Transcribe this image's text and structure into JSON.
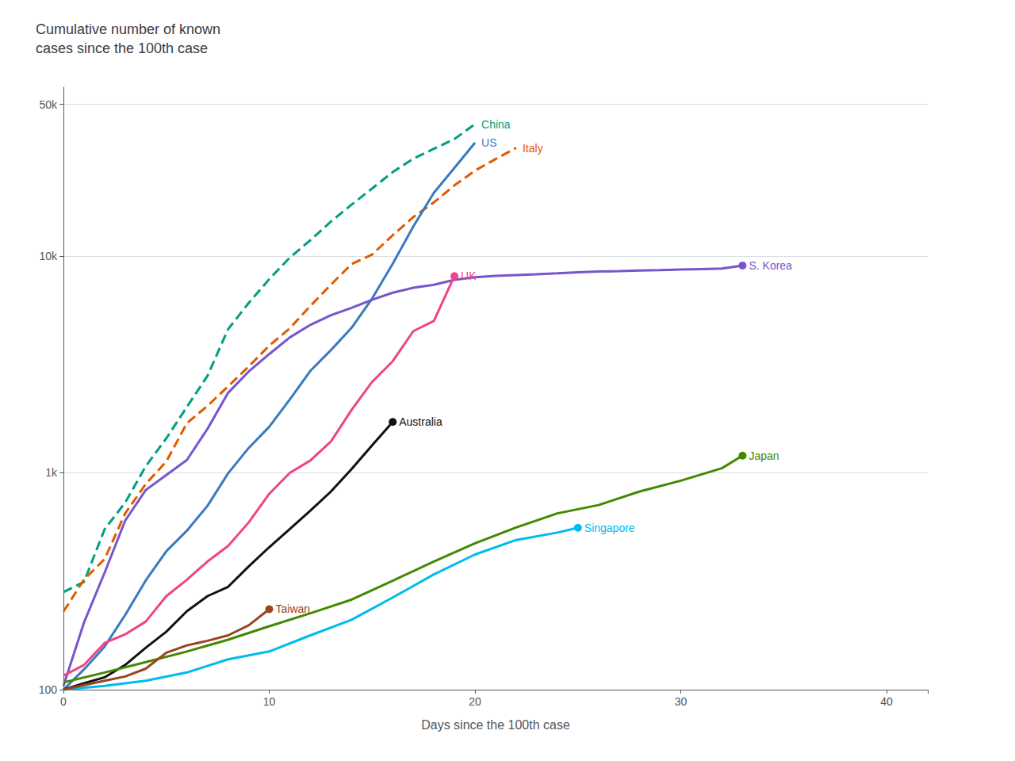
{
  "chart_data": {
    "type": "line",
    "title": "Cumulative number of known\ncases since the 100th case",
    "xlabel": "Days since the 100th case",
    "log": "y",
    "grid": true,
    "xlim": [
      0,
      42
    ],
    "xticks": [
      0,
      10,
      20,
      30,
      40
    ],
    "ylim": [
      100,
      60000
    ],
    "yticks": [
      100,
      {
        "value": 1000,
        "label": "1k"
      },
      {
        "value": 10000,
        "label": "10k"
      },
      {
        "value": 50000,
        "label": "50k"
      }
    ],
    "series": [
      {
        "name": "China",
        "color": "#009e82",
        "line_style": "dashed",
        "x": [
          0,
          1,
          2,
          3,
          4,
          5,
          6,
          7,
          8,
          9,
          10,
          11,
          12,
          13,
          14,
          15,
          16,
          17,
          18,
          19,
          20
        ],
        "values": [
          282,
          314,
          549,
          729,
          1072,
          1442,
          2014,
          2798,
          4593,
          6065,
          7818,
          9826,
          11821,
          14411,
          17238,
          20471,
          24363,
          28060,
          31211,
          34598,
          40553
        ]
      },
      {
        "name": "Italy",
        "color": "#e05a00",
        "line_style": "dashed",
        "x": [
          0,
          1,
          2,
          3,
          4,
          5,
          6,
          7,
          8,
          9,
          10,
          11,
          12,
          13,
          14,
          15,
          16,
          17,
          18,
          19,
          20,
          21,
          22
        ],
        "values": [
          229,
          322,
          400,
          650,
          888,
          1128,
          1694,
          2036,
          2502,
          3089,
          3858,
          4636,
          5883,
          7375,
          9172,
          10149,
          12462,
          15113,
          17660,
          21157,
          24747,
          27980,
          31506
        ]
      },
      {
        "name": "US",
        "color": "#3a7abf",
        "line_style": "solid",
        "x": [
          0,
          1,
          2,
          3,
          4,
          5,
          6,
          7,
          8,
          9,
          10,
          11,
          12,
          13,
          14,
          15,
          16,
          17,
          18,
          19,
          20
        ],
        "values": [
          100,
          124,
          158,
          221,
          319,
          435,
          541,
          704,
          994,
          1301,
          1630,
          2179,
          2953,
          3680,
          4661,
          6362,
          9197,
          13677,
          19551,
          25493,
          33276
        ]
      },
      {
        "name": "S. Korea",
        "color": "#7755cc",
        "line_style": "solid",
        "marker": "circle",
        "x": [
          0,
          1,
          2,
          3,
          4,
          5,
          6,
          7,
          8,
          9,
          10,
          11,
          12,
          13,
          14,
          15,
          16,
          17,
          18,
          19,
          20,
          21,
          22,
          23,
          24,
          25,
          26,
          27,
          28,
          29,
          30,
          31,
          32,
          33
        ],
        "values": [
          104,
          204,
          346,
          602,
          833,
          977,
          1146,
          1595,
          2337,
          2931,
          3526,
          4212,
          4812,
          5328,
          5766,
          6284,
          6767,
          7134,
          7362,
          7755,
          7979,
          8086,
          8162,
          8236,
          8320,
          8413,
          8472,
          8513,
          8565,
          8600,
          8652,
          8700,
          8750,
          9037
        ]
      },
      {
        "name": "UK",
        "color": "#ee4488",
        "line_style": "solid",
        "marker": "circle",
        "x": [
          0,
          1,
          2,
          3,
          4,
          5,
          6,
          7,
          8,
          9,
          10,
          11,
          12,
          13,
          14,
          15,
          16,
          17,
          18,
          19
        ],
        "values": [
          116,
          130,
          164,
          180,
          206,
          270,
          321,
          390,
          460,
          590,
          800,
          1000,
          1140,
          1395,
          1950,
          2626,
          3269,
          4500,
          5018,
          8077
        ]
      },
      {
        "name": "Australia",
        "color": "#111111",
        "line_style": "solid",
        "marker": "circle",
        "x": [
          0,
          1,
          2,
          3,
          4,
          5,
          6,
          7,
          8,
          9,
          10,
          11,
          12,
          13,
          14,
          15,
          16
        ],
        "values": [
          100,
          107,
          114,
          130,
          156,
          185,
          230,
          270,
          298,
          370,
          454,
          550,
          669,
          820,
          1040,
          1340,
          1716
        ]
      },
      {
        "name": "Japan",
        "color": "#448800",
        "line_style": "solid",
        "marker": "circle",
        "x": [
          0,
          2,
          4,
          6,
          8,
          10,
          12,
          14,
          16,
          18,
          20,
          22,
          24,
          26,
          28,
          30,
          32,
          33
        ],
        "values": [
          108,
          120,
          134,
          150,
          170,
          196,
          225,
          260,
          318,
          390,
          473,
          560,
          650,
          710,
          820,
          920,
          1050,
          1200
        ]
      },
      {
        "name": "Singapore",
        "color": "#00bbee",
        "line_style": "solid",
        "marker": "circle",
        "x": [
          0,
          2,
          4,
          6,
          8,
          10,
          12,
          14,
          16,
          18,
          20,
          22,
          24,
          25
        ],
        "values": [
          100,
          104,
          110,
          120,
          138,
          150,
          178,
          210,
          266,
          340,
          420,
          490,
          530,
          558
        ]
      },
      {
        "name": "Taiwan",
        "color": "#994422",
        "line_style": "solid",
        "marker": "circle",
        "x": [
          0,
          1,
          2,
          3,
          4,
          5,
          6,
          7,
          8,
          9,
          10
        ],
        "values": [
          100,
          105,
          110,
          115,
          125,
          148,
          160,
          168,
          178,
          198,
          235
        ]
      }
    ]
  }
}
